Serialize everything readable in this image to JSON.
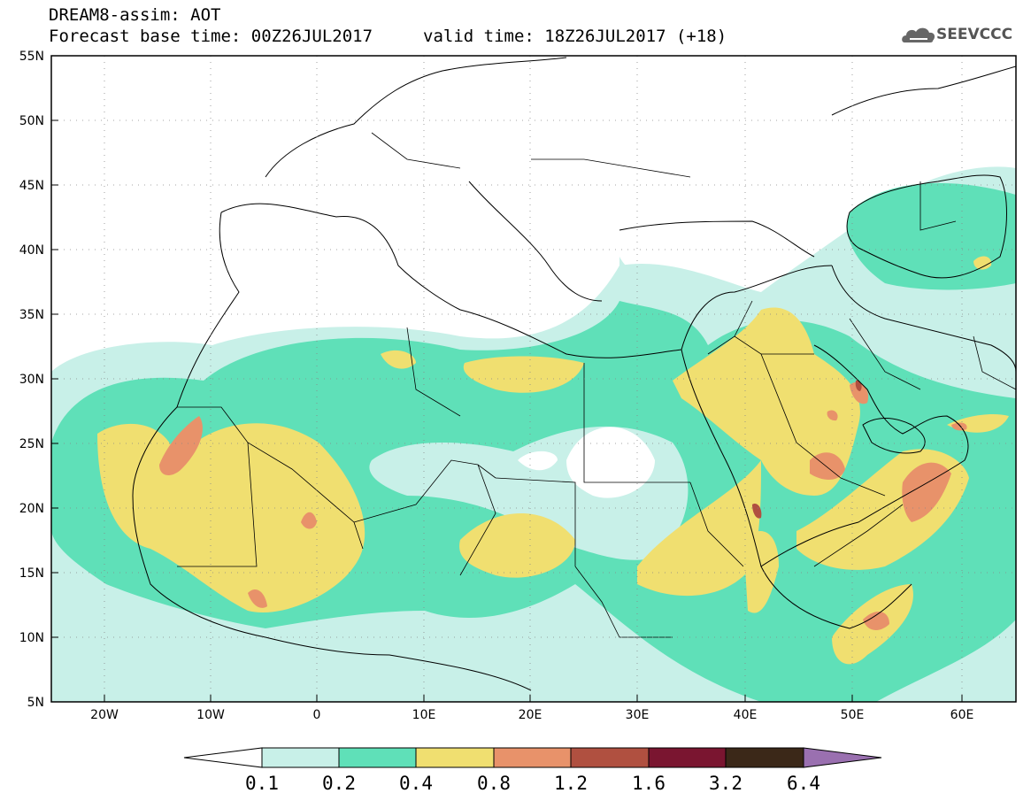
{
  "header": {
    "title": "DREAM8-assim: AOT",
    "base_time": "Forecast base time: 00Z26JUL2017",
    "valid_time": "valid time: 18Z26JUL2017 (+18)",
    "logo_text": "SEEVCCC"
  },
  "map": {
    "lon_range": [
      -25,
      65
    ],
    "lat_range": [
      5,
      55
    ],
    "lat_labels": [
      "55N",
      "50N",
      "45N",
      "40N",
      "35N",
      "30N",
      "25N",
      "20N",
      "15N",
      "10N",
      "5N"
    ],
    "lon_labels": [
      "20W",
      "10W",
      "0",
      "10E",
      "20E",
      "30E",
      "40E",
      "50E",
      "60E"
    ]
  },
  "colorbar": {
    "labels": [
      "0.1",
      "0.2",
      "0.4",
      "0.8",
      "1.2",
      "1.6",
      "3.2",
      "6.4"
    ],
    "colors": [
      "#c8f0e8",
      "#5fe0b8",
      "#f0df70",
      "#e8926a",
      "#b05040",
      "#7a1530",
      "#3b2818",
      "#9a70b0"
    ]
  }
}
